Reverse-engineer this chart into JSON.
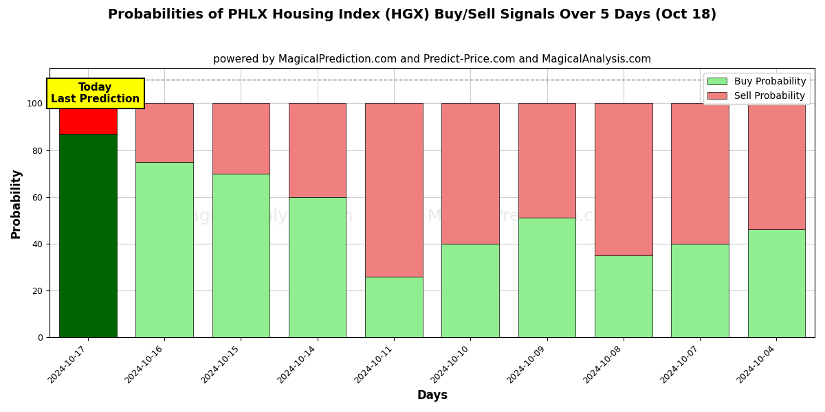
{
  "title": "Probabilities of PHLX Housing Index (HGX) Buy/Sell Signals Over 5 Days (Oct 18)",
  "subtitle": "powered by MagicalPrediction.com and Predict-Price.com and MagicalAnalysis.com",
  "xlabel": "Days",
  "ylabel": "Probability",
  "dates": [
    "2024-10-17",
    "2024-10-16",
    "2024-10-15",
    "2024-10-14",
    "2024-10-11",
    "2024-10-10",
    "2024-10-09",
    "2024-10-08",
    "2024-10-07",
    "2024-10-04"
  ],
  "buy_values": [
    87,
    75,
    70,
    60,
    26,
    40,
    51,
    35,
    40,
    46
  ],
  "sell_values": [
    13,
    25,
    30,
    40,
    74,
    60,
    49,
    65,
    60,
    54
  ],
  "today_bar_buy_color": "#006400",
  "today_bar_sell_color": "#FF0000",
  "other_bar_buy_color": "#90EE90",
  "other_bar_sell_color": "#F08080",
  "today_label_bg": "#FFFF00",
  "today_label_text": "Today\nLast Prediction",
  "legend_buy_label": "Buy Probability",
  "legend_sell_label": "Sell Probability",
  "ylim": [
    0,
    115
  ],
  "dashed_line_y": 110,
  "background_color": "#ffffff",
  "grid_color": "#cccccc",
  "bar_width": 0.75,
  "title_fontsize": 14,
  "subtitle_fontsize": 11,
  "axis_label_fontsize": 12,
  "tick_fontsize": 9
}
